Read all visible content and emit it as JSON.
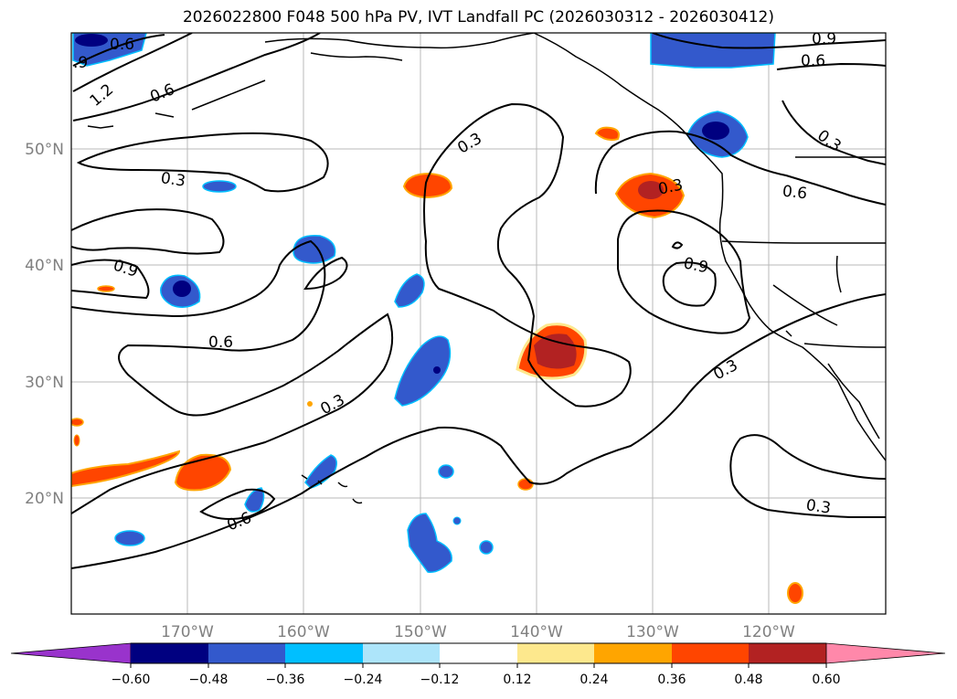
{
  "title": "2026022800 F048 500 hPa PV, IVT Landfall PC (2026030312 - 2026030412)",
  "lat_labels": [
    "50°N",
    "40°N",
    "30°N",
    "20°N"
  ],
  "lon_labels": [
    "170°W",
    "160°W",
    "150°W",
    "140°W",
    "130°W",
    "120°W"
  ],
  "contour_labels": [
    {
      "id": "c06-nw",
      "text": "0.6"
    },
    {
      "id": "c09-nw",
      "text": ".9"
    },
    {
      "id": "c12-nw",
      "text": "1.2"
    },
    {
      "id": "c06-w1",
      "text": "0.6"
    },
    {
      "id": "c03-w",
      "text": "0.3"
    },
    {
      "id": "c09-w",
      "text": "0.9"
    },
    {
      "id": "c06-w2",
      "text": "0.6"
    },
    {
      "id": "c03-sw",
      "text": "0.3"
    },
    {
      "id": "c06-sw",
      "text": "0.6"
    },
    {
      "id": "c03-c",
      "text": "0.3"
    },
    {
      "id": "c03-e",
      "text": "0.3"
    },
    {
      "id": "c09-ne",
      "text": "0.9"
    },
    {
      "id": "c06-ne",
      "text": "0.6"
    },
    {
      "id": "c03-ne",
      "text": "0.3"
    },
    {
      "id": "c06-e",
      "text": "0.6"
    },
    {
      "id": "c09-e",
      "text": "0.9"
    },
    {
      "id": "c03-se1",
      "text": "0.3"
    },
    {
      "id": "c03-se2",
      "text": "0.3"
    }
  ],
  "colorbar": {
    "colors": [
      "#9933cc",
      "#000080",
      "#3359cc",
      "#00bfff",
      "#ade5fa",
      "#ffffff",
      "#fde88d",
      "#ffa500",
      "#ff4500",
      "#b22222",
      "#ff88aa"
    ],
    "tick_labels": [
      "−0.60",
      "−0.48",
      "−0.36",
      "−0.24",
      "−0.12",
      "0.12",
      "0.24",
      "0.36",
      "0.48",
      "0.60"
    ]
  }
}
